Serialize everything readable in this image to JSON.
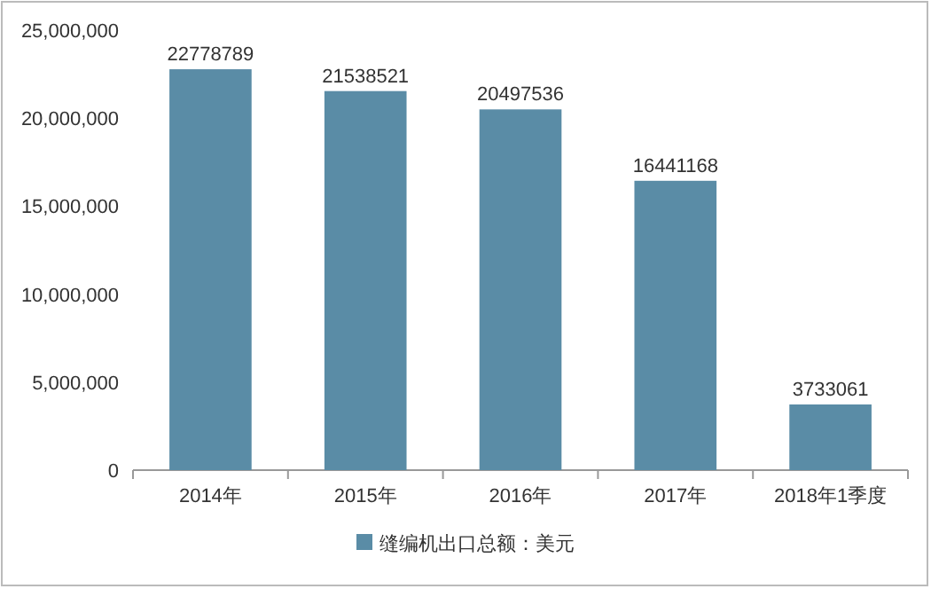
{
  "chart_data": {
    "type": "bar",
    "categories": [
      "2014年",
      "2015年",
      "2016年",
      "2017年",
      "2018年1季度"
    ],
    "series": [
      {
        "name": "缝编机出口总额：美元",
        "color": "#5a8ca6",
        "values": [
          22778789,
          21538521,
          20497536,
          16441168,
          3733061
        ]
      }
    ],
    "ylim": [
      0,
      25000000
    ],
    "yticks": [
      {
        "value": 0,
        "label": "0"
      },
      {
        "value": 5000000,
        "label": "5,000,000"
      },
      {
        "value": 10000000,
        "label": "10,000,000"
      },
      {
        "value": 15000000,
        "label": "15,000,000"
      },
      {
        "value": 20000000,
        "label": "20,000,000"
      },
      {
        "value": 25000000,
        "label": "25,000,000"
      }
    ],
    "data_labels": true,
    "legend": "bottom",
    "grid": false
  }
}
